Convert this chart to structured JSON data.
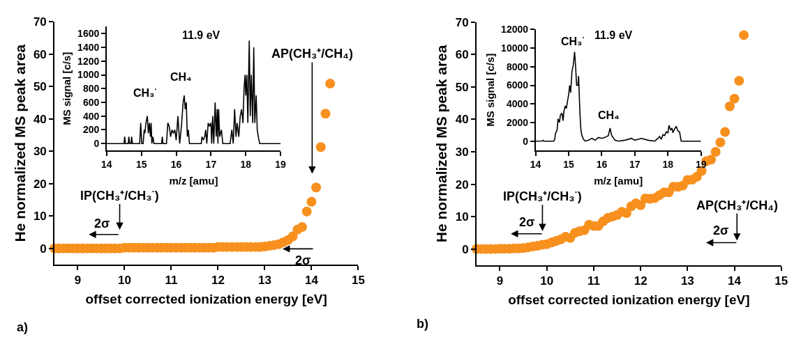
{
  "chart_data": [
    {
      "type": "scatter",
      "color": "#f7901e",
      "marker": "circle",
      "xlabel": "offset corrected ionization energy [eV]",
      "ylabel": "He normalized MS peak area",
      "xlim": [
        8.5,
        15
      ],
      "xticks": [
        9,
        10,
        11,
        12,
        13,
        14,
        15
      ],
      "ylim": [
        -5,
        70
      ],
      "yticks": [
        0,
        10,
        20,
        30,
        40,
        50,
        60,
        70
      ],
      "x": [
        8.5,
        8.6,
        8.7,
        8.8,
        8.9,
        9.0,
        9.1,
        9.2,
        9.3,
        9.4,
        9.5,
        9.6,
        9.7,
        9.8,
        9.9,
        10.0,
        10.1,
        10.2,
        10.3,
        10.4,
        10.5,
        10.6,
        10.7,
        10.8,
        10.9,
        11.0,
        11.1,
        11.2,
        11.3,
        11.4,
        11.5,
        11.6,
        11.7,
        11.8,
        11.9,
        12.0,
        12.1,
        12.2,
        12.3,
        12.4,
        12.5,
        12.6,
        12.7,
        12.8,
        12.9,
        13.0,
        13.1,
        13.2,
        13.3,
        13.4,
        13.5,
        13.6,
        13.7,
        13.8,
        13.9,
        14.0,
        14.1,
        14.2,
        14.3,
        14.4
      ],
      "values": [
        0,
        0,
        0,
        0,
        0,
        0,
        0,
        0,
        0,
        0,
        0,
        0,
        0,
        0,
        0,
        0.2,
        0.2,
        0.2,
        0.2,
        0.2,
        0.2,
        0.2,
        0.2,
        0.2,
        0.2,
        0.2,
        0.2,
        0.2,
        0.2,
        0.2,
        0.2,
        0.2,
        0.2,
        0.2,
        0.2,
        0.4,
        0.4,
        0.4,
        0.4,
        0.4,
        0.4,
        0.4,
        0.4,
        0.4,
        0.4,
        0.6,
        0.8,
        1.0,
        1.3,
        1.9,
        2.6,
        3.7,
        5.8,
        6.6,
        11.4,
        14.4,
        18.8,
        31.3,
        41.6,
        50.9
      ],
      "annotations": [
        "IP(CH₃⁺/CH₃$^{·}$)",
        "2σ",
        "AP(CH₃⁺/CH₄)",
        "2σ",
        "a)"
      ]
    },
    {
      "type": "line",
      "color": "#000000",
      "xlabel": "m/z [amu]",
      "ylabel": "MS signal [c/s]",
      "xlim": [
        14,
        19
      ],
      "xticks": [
        14,
        15,
        16,
        17,
        18,
        19
      ],
      "ylim": [
        -100,
        1700
      ],
      "yticks": [
        0,
        200,
        400,
        600,
        800,
        1000,
        1200,
        1400,
        1600
      ],
      "x": [
        14.0,
        14.5,
        14.52,
        14.54,
        14.62,
        14.64,
        14.66,
        14.7,
        14.72,
        14.74,
        14.95,
        14.98,
        15.01,
        15.05,
        15.08,
        15.1,
        15.13,
        15.17,
        15.2,
        15.23,
        15.26,
        15.28,
        15.3,
        15.33,
        15.36,
        15.58,
        15.6,
        15.62,
        15.72,
        15.76,
        15.8,
        15.84,
        15.88,
        15.92,
        15.96,
        16.0,
        16.05,
        16.1,
        16.15,
        16.2,
        16.23,
        16.26,
        16.29,
        16.32,
        16.35,
        16.38,
        16.72,
        16.74,
        16.78,
        16.82,
        16.85,
        16.88,
        16.92,
        16.96,
        17.0,
        17.02,
        17.05,
        17.08,
        17.12,
        17.15,
        17.18,
        17.2,
        17.22,
        17.25,
        17.3,
        17.34,
        17.55,
        17.6,
        17.64,
        17.68,
        17.72,
        17.75,
        17.8,
        17.84,
        17.88,
        17.92,
        17.95,
        17.98,
        18.0,
        18.03,
        18.06,
        18.1,
        18.13,
        18.16,
        18.2,
        18.23,
        18.26,
        18.3,
        18.33,
        18.36,
        18.4,
        18.45,
        19.0
      ],
      "values": [
        0,
        0,
        100,
        0,
        0,
        100,
        0,
        0,
        100,
        0,
        0,
        300,
        0,
        0,
        200,
        150,
        300,
        400,
        150,
        300,
        100,
        300,
        0,
        100,
        0,
        0,
        100,
        0,
        0,
        300,
        250,
        100,
        200,
        150,
        200,
        50,
        400,
        0,
        250,
        600,
        700,
        500,
        600,
        100,
        200,
        0,
        0,
        100,
        50,
        100,
        200,
        0,
        300,
        250,
        300,
        0,
        400,
        0,
        600,
        100,
        500,
        0,
        500,
        100,
        200,
        0,
        0,
        200,
        0,
        500,
        100,
        300,
        100,
        400,
        500,
        300,
        800,
        1000,
        700,
        1000,
        300,
        1500,
        400,
        1000,
        300,
        1400,
        300,
        700,
        200,
        100,
        0,
        0,
        0
      ],
      "annotations": [
        "11.9 eV",
        "CH₃$^{·}$",
        "CH₄"
      ]
    },
    {
      "type": "scatter",
      "color": "#f7901e",
      "marker": "circle",
      "xlabel": "offset corrected ionization energy [eV]",
      "ylabel": "He normalized MS peak area",
      "xlim": [
        8.5,
        15
      ],
      "xticks": [
        9,
        10,
        11,
        12,
        13,
        14,
        15
      ],
      "ylim": [
        -5,
        70
      ],
      "yticks": [
        0,
        10,
        20,
        30,
        40,
        50,
        60,
        70
      ],
      "x": [
        8.5,
        8.6,
        8.7,
        8.8,
        8.9,
        9.0,
        9.1,
        9.2,
        9.3,
        9.4,
        9.5,
        9.6,
        9.7,
        9.8,
        9.9,
        10.0,
        10.1,
        10.2,
        10.3,
        10.4,
        10.5,
        10.6,
        10.7,
        10.8,
        10.9,
        11.0,
        11.1,
        11.2,
        11.3,
        11.4,
        11.5,
        11.6,
        11.7,
        11.8,
        11.9,
        12.0,
        12.1,
        12.2,
        12.3,
        12.4,
        12.5,
        12.6,
        12.7,
        12.8,
        12.9,
        13.0,
        13.1,
        13.2,
        13.3,
        13.4,
        13.5,
        13.6,
        13.7,
        13.8,
        13.9,
        14.0,
        14.1,
        14.2
      ],
      "values": [
        0,
        0,
        0,
        0,
        0,
        0.1,
        0.1,
        0.1,
        0.2,
        0.2,
        0.3,
        0.5,
        0.8,
        1.0,
        1.3,
        1.5,
        2.0,
        2.5,
        3.0,
        3.8,
        3.4,
        5.0,
        5.5,
        5.8,
        7.5,
        7.1,
        7.1,
        8.5,
        9.6,
        10.0,
        10.5,
        11.5,
        11.1,
        13.2,
        14.1,
        13.5,
        15.6,
        15.5,
        15.7,
        16.6,
        17.5,
        17.5,
        19.2,
        19.2,
        19.6,
        21.3,
        21.4,
        22.3,
        24.1,
        27.1,
        27.6,
        30.0,
        32.9,
        36.1,
        44.0,
        46.4,
        51.9,
        66.0
      ],
      "annotations": [
        "IP(CH₃⁺/CH₃$^{·}$)",
        "2σ",
        "AP(CH₃⁺/CH₄)",
        "2σ",
        "b)"
      ]
    },
    {
      "type": "line",
      "color": "#000000",
      "xlabel": "m/z [amu]",
      "ylabel": "MS signal [c/s]",
      "xlim": [
        14,
        19
      ],
      "xticks": [
        14,
        15,
        16,
        17,
        18,
        19
      ],
      "ylim": [
        -1000,
        12000
      ],
      "yticks": [
        0,
        2000,
        4000,
        6000,
        8000,
        10000,
        12000
      ],
      "x": [
        14.0,
        14.2,
        14.22,
        14.25,
        14.55,
        14.58,
        14.6,
        14.65,
        14.68,
        14.72,
        14.75,
        14.8,
        14.83,
        14.86,
        14.9,
        14.93,
        14.97,
        15.0,
        15.03,
        15.06,
        15.1,
        15.14,
        15.18,
        15.21,
        15.24,
        15.28,
        15.3,
        15.34,
        15.37,
        15.4,
        15.45,
        15.5,
        15.6,
        15.7,
        15.8,
        15.9,
        16.0,
        16.1,
        16.2,
        16.25,
        16.3,
        16.4,
        16.5,
        16.7,
        16.9,
        17.0,
        17.2,
        17.4,
        17.6,
        17.7,
        17.75,
        17.8,
        17.85,
        17.9,
        17.95,
        18.0,
        18.03,
        18.08,
        18.12,
        18.15,
        18.2,
        18.25,
        18.3,
        18.35,
        18.4,
        19.0
      ],
      "values": [
        0,
        20,
        100,
        0,
        0,
        200,
        800,
        1200,
        2400,
        2000,
        2800,
        3000,
        2200,
        3300,
        3800,
        3500,
        4400,
        5000,
        6000,
        5200,
        7500,
        8200,
        9600,
        8000,
        6000,
        6000,
        7000,
        3000,
        1200,
        600,
        200,
        0,
        100,
        300,
        100,
        400,
        300,
        400,
        600,
        1400,
        600,
        100,
        0,
        100,
        300,
        100,
        300,
        100,
        0,
        300,
        500,
        200,
        700,
        600,
        1000,
        900,
        1700,
        1200,
        1400,
        900,
        1300,
        1600,
        1100,
        1000,
        0,
        0
      ],
      "annotations": [
        "11.9 eV",
        "CH₃$^{·}$",
        "CH₄"
      ]
    }
  ]
}
